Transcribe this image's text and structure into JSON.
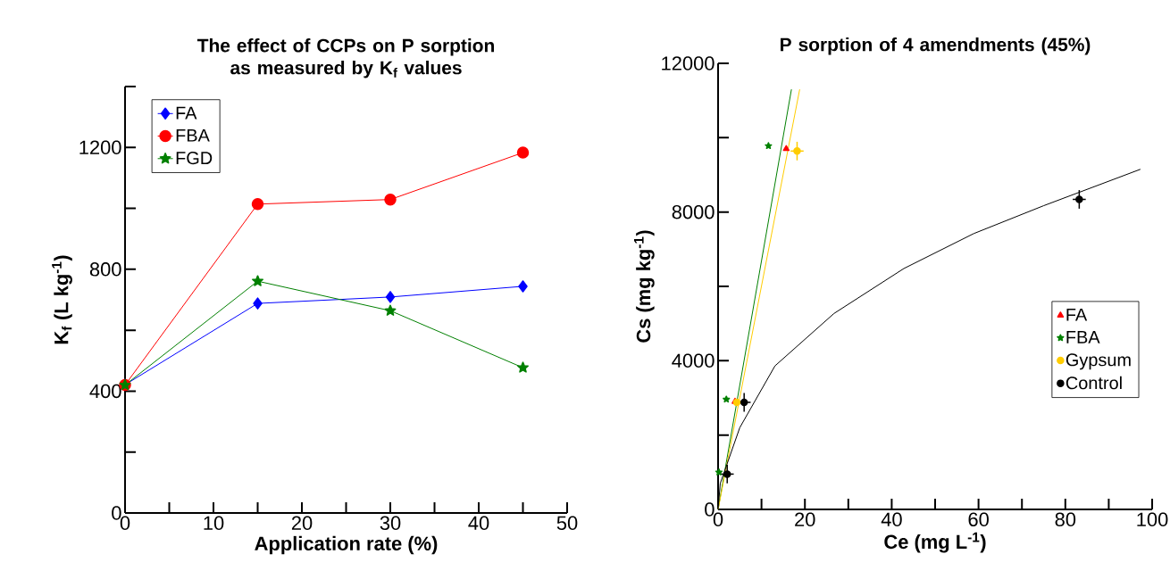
{
  "chart_data": [
    {
      "type": "line",
      "title": "The effect of CCPs on P sorption as measured by K$_{f}$ values",
      "xlabel": "Application rate (%)",
      "ylabel": "K$_{f}$ (L kg$^{-1}$)",
      "x": [
        0,
        15,
        30,
        45
      ],
      "series": [
        {
          "name": "FA",
          "color": "#0000ff",
          "marker": "diamond",
          "values": [
            421,
            688,
            709,
            744
          ]
        },
        {
          "name": "FBA",
          "color": "#ff0000",
          "marker": "circle",
          "values": [
            420,
            1014,
            1029,
            1183
          ]
        },
        {
          "name": "FGD",
          "color": "#008000",
          "marker": "star",
          "values": [
            420,
            761,
            664,
            477
          ]
        }
      ],
      "xlim": [
        0,
        50
      ],
      "ylim": [
        0,
        1400
      ],
      "xticks": [
        0,
        {
          "value": 5,
          "label": null
        },
        10,
        {
          "value": 15,
          "label": null
        },
        20,
        {
          "value": 25,
          "label": null
        },
        30,
        {
          "value": 35,
          "label": null
        },
        40,
        {
          "value": 45,
          "label": null
        },
        50
      ],
      "yticks": [
        0,
        {
          "value": 200,
          "label": null
        },
        400,
        {
          "value": 600,
          "label": null
        },
        800,
        {
          "value": 1000,
          "label": null
        },
        1200,
        {
          "value": 1400,
          "label": null
        }
      ],
      "grid": false,
      "legend": "top left"
    },
    {
      "type": "scatter",
      "title": "P sorption of 4 amendments (45%)",
      "xlabel": "Ce (mg L$^{-1}$)",
      "ylabel": "Cs (mg kg$^{-1}$)",
      "series": [
        {
          "type": "line",
          "color": "#008000",
          "marker": "none",
          "x": [
            0,
            16.9
          ],
          "values": [
            0,
            11300
          ]
        },
        {
          "type": "line",
          "color": "#ffcc00",
          "marker": "none",
          "x": [
            0,
            18.8
          ],
          "values": [
            0,
            11300
          ]
        },
        {
          "type": "line",
          "color": "#000000",
          "marker": "none",
          "x": [
            0,
            0.5,
            2,
            5,
            13.1,
            26.7,
            42.8,
            58.9,
            75,
            97.3
          ],
          "values": [
            0,
            700,
            1200,
            2200,
            3860,
            5270,
            6480,
            7420,
            8170,
            9150
          ]
        },
        {
          "name": "FA",
          "color": "#ff0000",
          "marker": "triangle",
          "x": [
            3.9,
            15.7
          ],
          "values": [
            2900,
            9700
          ]
        },
        {
          "name": "FBA",
          "color": "#008000",
          "marker": "star",
          "x": [
            0.2,
            1.9,
            11.6
          ],
          "values": [
            1000,
            2960,
            9780
          ]
        },
        {
          "name": "Gypsum",
          "color": "#ffcc00",
          "marker": "circle",
          "x": [
            4.3,
            18.2
          ],
          "values": [
            2880,
            9640
          ],
          "errors": [
            null,
            250
          ],
          "xerrors": [
            null,
            1.5
          ]
        },
        {
          "name": "Control",
          "color": "#000000",
          "marker": "circle",
          "x": [
            2.1,
            6.0,
            83.2
          ],
          "values": [
            950,
            2880,
            8340
          ],
          "errors": [
            250,
            250,
            250
          ],
          "xerrors": [
            1.5,
            1.5,
            1.5
          ]
        }
      ],
      "xlim": [
        0,
        100
      ],
      "ylim": [
        0,
        12000
      ],
      "xticks": [
        0,
        {
          "value": 10,
          "label": null
        },
        20,
        {
          "value": 30,
          "label": null
        },
        40,
        {
          "value": 50,
          "label": null
        },
        60,
        {
          "value": 70,
          "label": null
        },
        80,
        {
          "value": 90,
          "label": null
        },
        100
      ],
      "yticks": [
        0,
        {
          "value": 2000,
          "label": null
        },
        4000,
        {
          "value": 6000,
          "label": null
        },
        8000,
        {
          "value": 10000,
          "label": null
        },
        12000
      ],
      "grid": false,
      "legend": "right"
    }
  ]
}
